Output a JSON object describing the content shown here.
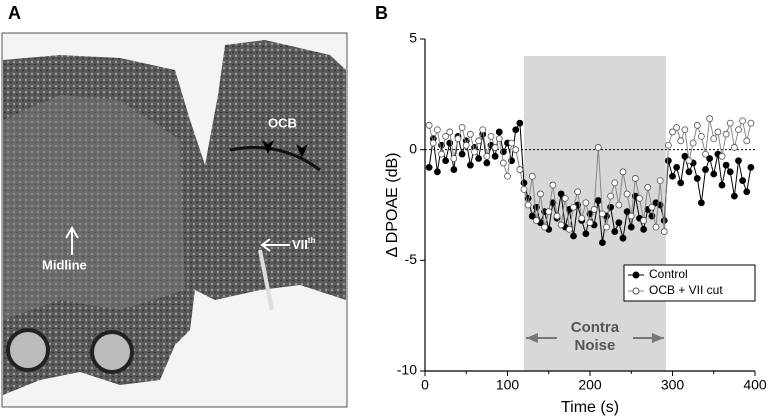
{
  "panel_a": {
    "label": "A",
    "annotations": [
      {
        "text": "OCB"
      },
      {
        "text": "Midline"
      },
      {
        "text": "VII",
        "sup": "th"
      }
    ]
  },
  "chart_data": {
    "type": "line",
    "panel_label": "B",
    "xlabel": "Time (s)",
    "ylabel": "Δ DPOAE (dB)",
    "xlim": [
      0,
      400
    ],
    "xticks": [
      0,
      100,
      200,
      300,
      400
    ],
    "ylim": [
      -10,
      5
    ],
    "yticks": [
      -10,
      -5,
      0,
      5
    ],
    "hline": 0,
    "shaded_region": {
      "xlim": [
        120,
        292
      ],
      "label": [
        "Contra",
        "Noise"
      ]
    },
    "legend": "lower right",
    "x": [
      5,
      10,
      15,
      20,
      25,
      30,
      35,
      40,
      45,
      50,
      55,
      60,
      65,
      70,
      75,
      80,
      85,
      90,
      95,
      100,
      105,
      110,
      115,
      120,
      125,
      130,
      135,
      140,
      145,
      150,
      155,
      160,
      165,
      170,
      175,
      180,
      185,
      190,
      195,
      200,
      205,
      210,
      215,
      220,
      225,
      230,
      235,
      240,
      245,
      250,
      255,
      260,
      265,
      270,
      275,
      280,
      285,
      290,
      295,
      300,
      305,
      310,
      315,
      320,
      325,
      330,
      335,
      340,
      345,
      350,
      355,
      360,
      365,
      370,
      375,
      380,
      385,
      390,
      395
    ],
    "series": [
      {
        "name": "Control",
        "color": "#000000",
        "marker": "filled",
        "values": [
          -0.8,
          0.5,
          -1.0,
          0.2,
          -0.5,
          0.3,
          -0.9,
          0.6,
          -0.2,
          0.4,
          -0.7,
          0.1,
          -0.4,
          0.7,
          -0.6,
          0.2,
          -0.3,
          0.8,
          -0.1,
          0.3,
          -0.5,
          0.9,
          1.2,
          -1.5,
          -2.2,
          -3.0,
          -2.6,
          -3.3,
          -2.8,
          -3.6,
          -2.4,
          -3.1,
          -2.0,
          -3.5,
          -2.7,
          -3.9,
          -2.5,
          -3.2,
          -3.8,
          -2.9,
          -3.4,
          -2.3,
          -4.2,
          -3.0,
          -2.6,
          -3.7,
          -3.3,
          -4.0,
          -2.8,
          -3.5,
          -2.1,
          -3.1,
          -3.6,
          -2.7,
          -3.0,
          -2.4,
          -2.5,
          -3.2,
          -0.5,
          -1.2,
          -0.8,
          -1.5,
          -0.3,
          -1.0,
          -0.6,
          -1.3,
          -2.4,
          -0.9,
          -0.4,
          -1.1,
          -0.2,
          -1.6,
          -0.7,
          -1.0,
          -2.1,
          -0.5,
          -1.4,
          -1.9,
          -0.8
        ]
      },
      {
        "name": "OCB + VII cut",
        "color": "#888888",
        "marker": "open",
        "values": [
          1.1,
          0.3,
          0.9,
          -0.2,
          0.6,
          0.8,
          -0.4,
          0.5,
          1.0,
          0.2,
          0.7,
          -0.1,
          0.4,
          0.9,
          -0.3,
          0.6,
          0.1,
          0.5,
          -0.6,
          -1.2,
          0.3,
          0.0,
          -0.9,
          -1.8,
          -2.5,
          -1.2,
          -3.2,
          -2.0,
          -3.5,
          -2.8,
          -1.6,
          -3.0,
          -3.4,
          -2.2,
          -3.6,
          -2.6,
          -1.9,
          -3.1,
          -2.4,
          -3.3,
          -2.7,
          0.1,
          -2.9,
          -3.5,
          -2.1,
          -1.5,
          -2.5,
          -1.0,
          -2.0,
          -3.0,
          -1.3,
          -2.2,
          -3.2,
          -1.7,
          -2.6,
          -3.5,
          -1.4,
          -3.7,
          0.2,
          0.8,
          1.0,
          0.4,
          0.9,
          -0.5,
          0.3,
          1.1,
          0.6,
          -0.2,
          1.4,
          0.5,
          0.8,
          -0.3,
          0.7,
          1.2,
          0.1,
          0.9,
          1.3,
          0.4,
          1.2
        ]
      }
    ]
  }
}
